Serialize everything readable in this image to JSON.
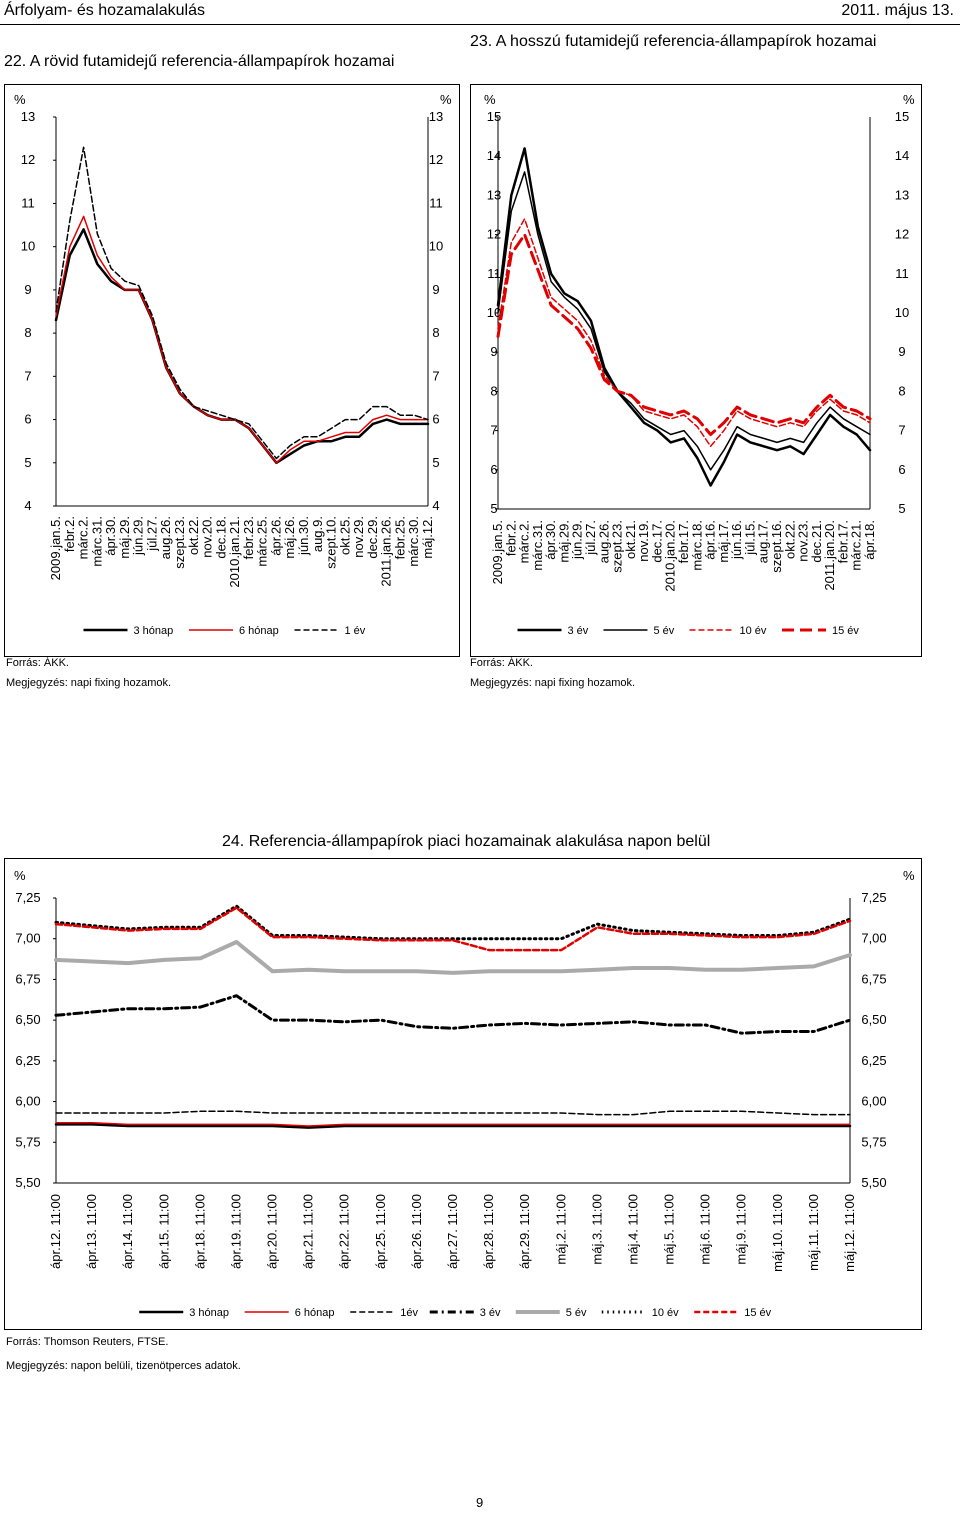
{
  "header": {
    "left": "Árfolyam- és hozamalakulás",
    "right": "2011. május 13."
  },
  "page_number": "9",
  "chart22": {
    "title": "22. A rövid futamidejű referencia-állampapírok hozamai",
    "unit_left": "%",
    "unit_right": "%",
    "source": "Forrás: ÁKK.",
    "note": "Megjegyzés: napi fixing hozamok."
  },
  "chart23": {
    "title": "23. A hosszú futamidejű referencia-állampapírok hozamai",
    "unit_left": "%",
    "unit_right": "%",
    "source": "Forrás: ÁKK.",
    "note": "Megjegyzés: napi fixing hozamok."
  },
  "chart24": {
    "title": "24. Referencia-állampapírok piaci hozamainak alakulása napon belül",
    "unit_left": "%",
    "unit_right": "%",
    "source": "Forrás: Thomson Reuters, FTSE.",
    "note": "Megjegyzés: napon belüli, tizenötperces adatok."
  },
  "chart_data": [
    {
      "type": "line",
      "title": "22. A rövid futamidejű referencia-állampapírok hozamai",
      "ylim": [
        4,
        13
      ],
      "yticks": [
        "4",
        "5",
        "6",
        "7",
        "8",
        "9",
        "10",
        "11",
        "12",
        "13"
      ],
      "categories": [
        "2009.jan.5.",
        "febr.2.",
        "márc.2.",
        "márc.31.",
        "ápr.30.",
        "máj.29.",
        "jún.29.",
        "júl.27.",
        "aug.26.",
        "szept.23.",
        "okt.22.",
        "nov.20.",
        "dec.18.",
        "2010.jan.21.",
        "febr.23.",
        "márc.25.",
        "ápr.26.",
        "máj.26.",
        "jún.30.",
        "aug.9.",
        "szept.10.",
        "okt.25.",
        "nov.29.",
        "dec.29.",
        "2011.jan.26.",
        "febr.25.",
        "márc.30.",
        "máj.12."
      ],
      "series": [
        {
          "name": "3 hónap",
          "color": "#000000",
          "dash": "solid",
          "width": 2.5,
          "values": [
            8.3,
            9.8,
            10.4,
            9.6,
            9.2,
            9.0,
            9.0,
            8.3,
            7.2,
            6.6,
            6.3,
            6.1,
            6.0,
            6.0,
            5.8,
            5.4,
            5.0,
            5.2,
            5.4,
            5.5,
            5.5,
            5.6,
            5.6,
            5.9,
            6.0,
            5.9,
            5.9,
            5.9
          ]
        },
        {
          "name": "6 hónap",
          "color": "#e00000",
          "dash": "solid",
          "width": 1.5,
          "values": [
            8.4,
            10.0,
            10.7,
            9.8,
            9.3,
            9.0,
            9.0,
            8.3,
            7.2,
            6.6,
            6.3,
            6.1,
            6.0,
            6.0,
            5.8,
            5.4,
            5.0,
            5.3,
            5.5,
            5.5,
            5.6,
            5.7,
            5.7,
            6.0,
            6.1,
            6.0,
            6.0,
            6.0
          ]
        },
        {
          "name": "1 év",
          "color": "#000000",
          "dash": "dashed",
          "width": 1.5,
          "values": [
            8.5,
            10.6,
            12.3,
            10.3,
            9.5,
            9.2,
            9.1,
            8.4,
            7.3,
            6.7,
            6.3,
            6.2,
            6.1,
            6.0,
            5.9,
            5.5,
            5.1,
            5.4,
            5.6,
            5.6,
            5.8,
            6.0,
            6.0,
            6.3,
            6.3,
            6.1,
            6.1,
            6.0
          ]
        }
      ]
    },
    {
      "type": "line",
      "title": "23. A hosszú futamidejű referencia-állampapírok hozamai",
      "ylim": [
        5,
        15
      ],
      "yticks": [
        "5",
        "6",
        "7",
        "8",
        "9",
        "10",
        "11",
        "12",
        "13",
        "14",
        "15"
      ],
      "categories": [
        "2009.jan.5.",
        "febr.2.",
        "márc.2.",
        "márc.31.",
        "ápr.30.",
        "máj.29.",
        "jún.29.",
        "júl.27.",
        "aug.26.",
        "szept.23.",
        "okt.21.",
        "nov.19.",
        "dec.17.",
        "2010.jan.20.",
        "febr.17.",
        "márc.18.",
        "ápr.16.",
        "máj.17.",
        "jún.16.",
        "júl.15.",
        "aug.17.",
        "szept.16.",
        "okt.22.",
        "nov.23.",
        "dec.21.",
        "2011.jan.20.",
        "febr.17.",
        "márc.21.",
        "ápr.18."
      ],
      "series": [
        {
          "name": "3 év",
          "color": "#000000",
          "dash": "solid",
          "width": 2.5,
          "values": [
            10.2,
            13.0,
            14.2,
            12.2,
            11.0,
            10.5,
            10.3,
            9.8,
            8.6,
            8.0,
            7.6,
            7.2,
            7.0,
            6.7,
            6.8,
            6.3,
            5.6,
            6.2,
            6.9,
            6.7,
            6.6,
            6.5,
            6.6,
            6.4,
            6.9,
            7.4,
            7.1,
            6.9,
            6.5
          ]
        },
        {
          "name": "5 év",
          "color": "#000000",
          "dash": "solid",
          "width": 1.5,
          "values": [
            10.0,
            12.6,
            13.6,
            12.0,
            10.8,
            10.4,
            10.1,
            9.6,
            8.5,
            8.0,
            7.7,
            7.3,
            7.1,
            6.9,
            7.0,
            6.6,
            6.0,
            6.5,
            7.1,
            6.9,
            6.8,
            6.7,
            6.8,
            6.7,
            7.2,
            7.6,
            7.3,
            7.1,
            6.9
          ]
        },
        {
          "name": "10 év",
          "color": "#e00000",
          "dash": "dashed",
          "width": 1.5,
          "values": [
            9.6,
            11.8,
            12.4,
            11.4,
            10.4,
            10.1,
            9.8,
            9.3,
            8.4,
            8.0,
            7.9,
            7.5,
            7.4,
            7.3,
            7.4,
            7.1,
            6.6,
            7.0,
            7.5,
            7.3,
            7.2,
            7.1,
            7.2,
            7.1,
            7.5,
            7.8,
            7.5,
            7.4,
            7.2
          ]
        },
        {
          "name": "15 év",
          "color": "#e00000",
          "dash": "longdash",
          "width": 3,
          "values": [
            9.4,
            11.5,
            12.0,
            11.1,
            10.2,
            9.9,
            9.6,
            9.1,
            8.3,
            8.0,
            7.9,
            7.6,
            7.5,
            7.4,
            7.5,
            7.3,
            6.9,
            7.2,
            7.6,
            7.4,
            7.3,
            7.2,
            7.3,
            7.2,
            7.6,
            7.9,
            7.6,
            7.5,
            7.3
          ]
        }
      ]
    },
    {
      "type": "line",
      "title": "24. Referencia-állampapírok piaci hozamainak alakulása napon belül",
      "ylim": [
        5.5,
        7.25
      ],
      "yticks": [
        "5,50",
        "5,75",
        "6,00",
        "6,25",
        "6,50",
        "6,75",
        "7,00",
        "7,25"
      ],
      "categories": [
        "ápr.12. 11:00",
        "ápr.13. 11:00",
        "ápr.14. 11:00",
        "ápr.15. 11:00",
        "ápr.18. 11:00",
        "ápr.19. 11:00",
        "ápr.20. 11:00",
        "ápr.21. 11:00",
        "ápr.22. 11:00",
        "ápr.25. 11:00",
        "ápr.26. 11:00",
        "ápr.27. 11:00",
        "ápr.28. 11:00",
        "ápr.29. 11:00",
        "máj.2. 11:00",
        "máj.3. 11:00",
        "máj.4. 11:00",
        "máj.5. 11:00",
        "máj.6. 11:00",
        "máj.9. 11:00",
        "máj.10. 11:00",
        "máj.11. 11:00",
        "máj.12. 11:00"
      ],
      "series": [
        {
          "name": "3 hónap",
          "color": "#000000",
          "dash": "solid",
          "width": 2.5,
          "values": [
            5.86,
            5.86,
            5.85,
            5.85,
            5.85,
            5.85,
            5.85,
            5.84,
            5.85,
            5.85,
            5.85,
            5.85,
            5.85,
            5.85,
            5.85,
            5.85,
            5.85,
            5.85,
            5.85,
            5.85,
            5.85,
            5.85,
            5.85
          ]
        },
        {
          "name": "6 hónap",
          "color": "#e00000",
          "dash": "solid",
          "width": 1.5,
          "values": [
            5.87,
            5.87,
            5.86,
            5.86,
            5.86,
            5.86,
            5.86,
            5.85,
            5.86,
            5.86,
            5.86,
            5.86,
            5.86,
            5.86,
            5.86,
            5.86,
            5.86,
            5.86,
            5.86,
            5.86,
            5.86,
            5.86,
            5.86
          ]
        },
        {
          "name": "1év",
          "color": "#000000",
          "dash": "dashed",
          "width": 1.5,
          "values": [
            5.93,
            5.93,
            5.93,
            5.93,
            5.94,
            5.94,
            5.93,
            5.93,
            5.93,
            5.93,
            5.93,
            5.93,
            5.93,
            5.93,
            5.93,
            5.92,
            5.92,
            5.94,
            5.94,
            5.94,
            5.93,
            5.92,
            5.92
          ]
        },
        {
          "name": "3 év",
          "color": "#000000",
          "dash": "dashdot",
          "width": 3,
          "values": [
            6.53,
            6.55,
            6.57,
            6.57,
            6.58,
            6.65,
            6.5,
            6.5,
            6.49,
            6.5,
            6.46,
            6.45,
            6.47,
            6.48,
            6.47,
            6.48,
            6.49,
            6.47,
            6.47,
            6.42,
            6.43,
            6.43,
            6.5
          ]
        },
        {
          "name": "5 év",
          "color": "#aaaaaa",
          "dash": "solid",
          "width": 4,
          "values": [
            6.87,
            6.86,
            6.85,
            6.87,
            6.88,
            6.98,
            6.8,
            6.81,
            6.8,
            6.8,
            6.8,
            6.79,
            6.8,
            6.8,
            6.8,
            6.81,
            6.82,
            6.82,
            6.81,
            6.81,
            6.82,
            6.83,
            6.9
          ]
        },
        {
          "name": "10 év",
          "color": "#000000",
          "dash": "dotted",
          "width": 3,
          "values": [
            7.1,
            7.08,
            7.06,
            7.07,
            7.07,
            7.2,
            7.02,
            7.02,
            7.01,
            7.0,
            7.0,
            7.0,
            7.0,
            7.0,
            7.0,
            7.09,
            7.05,
            7.04,
            7.03,
            7.02,
            7.02,
            7.04,
            7.12
          ]
        },
        {
          "name": "15 év",
          "color": "#e00000",
          "dash": "dashed",
          "width": 2.5,
          "values": [
            7.09,
            7.07,
            7.05,
            7.06,
            7.06,
            7.19,
            7.01,
            7.01,
            7.0,
            6.99,
            6.99,
            6.99,
            6.93,
            6.93,
            6.93,
            7.07,
            7.03,
            7.03,
            7.02,
            7.01,
            7.01,
            7.03,
            7.11
          ]
        }
      ]
    }
  ]
}
